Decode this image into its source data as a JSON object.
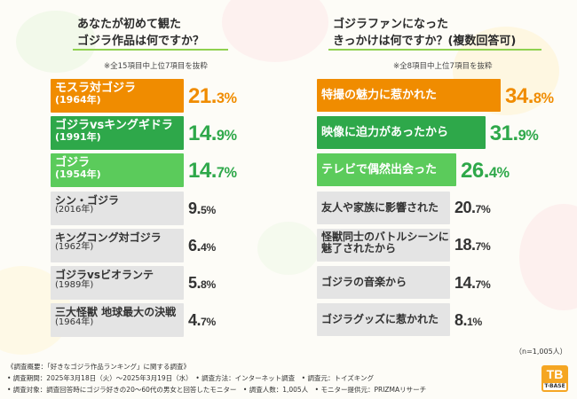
{
  "colors": {
    "orange": "#f08c00",
    "green": "#2ea84a",
    "lightgreen": "#5bcb5b",
    "gray": "#e4e4e4",
    "grayText": "#333333"
  },
  "left": {
    "title_line1": "あなたが初めて観た",
    "title_line2": "ゴジラ作品は何ですか？",
    "note": "※全15項目中上位7項目を抜粋"
  },
  "right": {
    "title_line1": "ゴジラファンになった",
    "title_line2": "きっかけは何ですか？(複数回答可)",
    "note": "※全8項目中上位7項目を抜粋",
    "n_label": "（n=1,005人）"
  },
  "chart_data": [
    {
      "type": "bar",
      "orientation": "horizontal",
      "title": "あなたが初めて観たゴジラ作品は何ですか？",
      "unit": "%",
      "categories": [
        [
          "モスラ対ゴジラ",
          "(1964年)"
        ],
        [
          "ゴジラvsキングギドラ",
          "(1991年)"
        ],
        [
          "ゴジラ",
          "(1954年)"
        ],
        [
          "シン・ゴジラ",
          "(2016年)"
        ],
        [
          "キングコング対ゴジラ",
          "(1962年)"
        ],
        [
          "ゴジラvsビオランテ",
          "(1989年)"
        ],
        [
          "三大怪獣 地球最大の決戦",
          "(1964年)"
        ]
      ],
      "values": [
        21.3,
        14.9,
        14.7,
        9.5,
        6.4,
        5.8,
        4.7
      ],
      "value_labels": [
        [
          "21.",
          "3%"
        ],
        [
          "14.",
          "9%"
        ],
        [
          "14.",
          "7%"
        ],
        [
          "9.",
          "5%"
        ],
        [
          "6.",
          "4%"
        ],
        [
          "5.",
          "8%"
        ],
        [
          "4.",
          "7%"
        ]
      ],
      "bar_colors": [
        "#f08c00",
        "#2ea84a",
        "#5bcb5b",
        "#e4e4e4",
        "#e4e4e4",
        "#e4e4e4",
        "#e4e4e4"
      ],
      "text_colors": [
        "#ffffff",
        "#ffffff",
        "#ffffff",
        "#333333",
        "#333333",
        "#333333",
        "#333333"
      ],
      "value_colors": [
        "#f08c00",
        "#2ea84a",
        "#2ea84a",
        "#333333",
        "#333333",
        "#333333",
        "#333333"
      ]
    },
    {
      "type": "bar",
      "orientation": "horizontal",
      "title": "ゴジラファンになったきっかけは何ですか？(複数回答可)",
      "unit": "%",
      "categories": [
        [
          "特撮の魅力に惹かれた"
        ],
        [
          "映像に迫力があったから"
        ],
        [
          "テレビで偶然出会った"
        ],
        [
          "友人や家族に影響された"
        ],
        [
          "怪獣同士のバトルシーンに",
          "魅了されたから"
        ],
        [
          "ゴジラの音楽から"
        ],
        [
          "ゴジラグッズに惹かれた"
        ]
      ],
      "values": [
        34.8,
        31.9,
        26.4,
        20.7,
        18.7,
        14.7,
        8.1
      ],
      "value_labels": [
        [
          "34.",
          "8%"
        ],
        [
          "31.",
          "9%"
        ],
        [
          "26.",
          "4%"
        ],
        [
          "20.",
          "7%"
        ],
        [
          "18.",
          "7%"
        ],
        [
          "14.",
          "7%"
        ],
        [
          "8.",
          "1%"
        ]
      ],
      "bar_colors": [
        "#f08c00",
        "#2ea84a",
        "#5bcb5b",
        "#e4e4e4",
        "#e4e4e4",
        "#e4e4e4",
        "#e4e4e4"
      ],
      "text_colors": [
        "#ffffff",
        "#ffffff",
        "#ffffff",
        "#333333",
        "#333333",
        "#333333",
        "#333333"
      ],
      "value_colors": [
        "#f08c00",
        "#2ea84a",
        "#2ea84a",
        "#333333",
        "#333333",
        "#333333",
        "#333333"
      ]
    }
  ],
  "footer": {
    "line1": "《調査概要：「好きなゴジラ作品ランキング」に関する調査》",
    "line2": "• 調査期間：2025年3月18日（火）～2025年3月19日（水）　• 調査方法：インターネット調査　• 調査元：トイズキング",
    "line3": "• 調査対象：調査回答時にゴジラ好きの20～60代の男女と回答したモニター　• 調査人数：1,005人　• モニター提供元：PRIZMAリサーチ"
  },
  "logo": {
    "mark": "TB",
    "text": "T-BASE"
  }
}
